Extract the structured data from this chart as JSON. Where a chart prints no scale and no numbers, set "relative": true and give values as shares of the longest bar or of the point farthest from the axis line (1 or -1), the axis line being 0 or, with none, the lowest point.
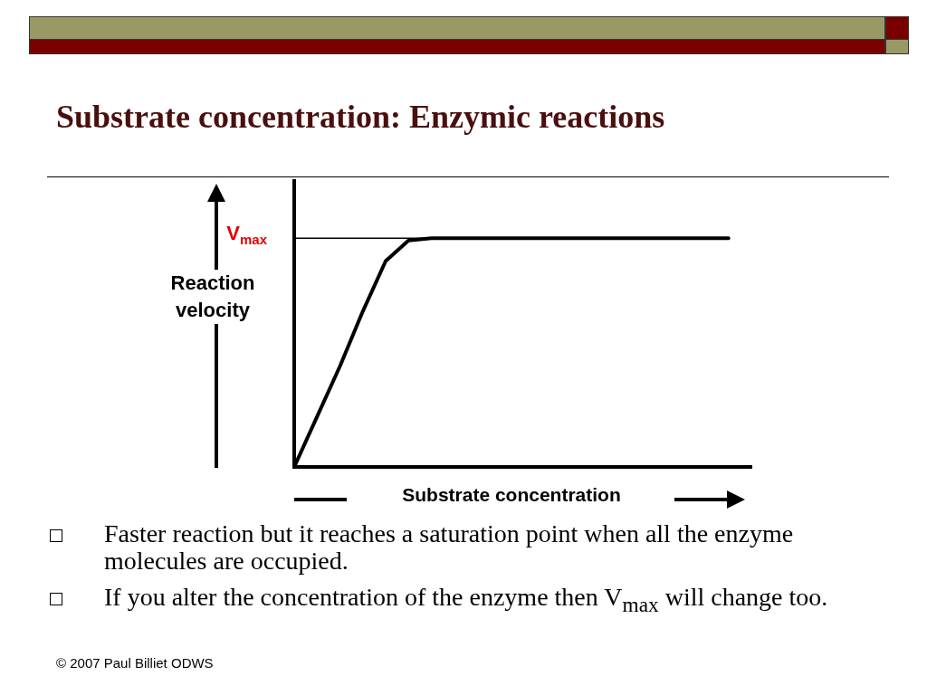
{
  "chart_data": {
    "type": "line",
    "title": "Substrate concentration: Enzymic reactions",
    "xlabel": "Substrate concentration",
    "ylabel": "Reaction velocity",
    "relative": true,
    "categories": [
      null,
      null,
      null,
      null,
      null,
      null,
      null,
      null,
      null,
      null,
      null,
      null,
      null,
      null,
      null,
      null,
      null,
      null,
      null,
      null,
      null
    ],
    "series": [
      {
        "color": "#000000",
        "values": [
          0,
          0.22,
          0.44,
          0.68,
          0.9,
          0.99,
          1,
          1,
          1,
          1,
          1,
          1,
          1,
          1,
          1,
          1,
          1,
          1,
          1,
          1,
          null
        ]
      }
    ],
    "ref_lines": [
      {
        "axis": "y",
        "value": 1,
        "label": "V$_{max}$",
        "color": "#000000"
      }
    ],
    "marker": "none",
    "grid": false,
    "legend": false,
    "annotations": [
      "Faster reaction but it reaches a saturation point when all the enzyme molecules are occupied.",
      "If you alter the concentration of the enzyme then V$_{max}$ will change too.",
      "© 2007 Paul Billiet ODWS"
    ]
  }
}
